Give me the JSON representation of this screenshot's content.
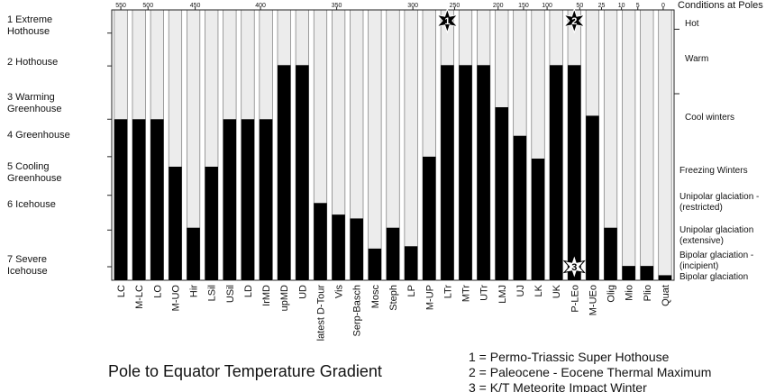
{
  "chart_data": {
    "type": "bar",
    "title": "Pole to Equator Temperature Gradient",
    "top_axis_ticks": [
      "550",
      "500",
      "450",
      "400",
      "350",
      "300",
      "250",
      "200",
      "150",
      "100",
      "50",
      "25",
      "10",
      "5",
      "0"
    ],
    "top_axis_tick_at_bar": [
      0,
      1.5,
      4.1,
      7.7,
      11.9,
      16.1,
      18.4,
      20.8,
      22.2,
      23.5,
      25.3,
      26.5,
      27.6,
      28.5,
      29.9
    ],
    "climate_states": [
      "1 Extreme\nHothouse",
      "2 Hothouse",
      "3 Warming\nGreenhouse",
      "4 Greenhouse",
      "5 Cooling\nGreenhouse",
      "6 Icehouse",
      "7  Severe\nIcehouse"
    ],
    "pole_header": "Conditions at Poles",
    "pole_conditions": [
      "Hot",
      "Warm",
      "Cool winters",
      "Freezing Winters",
      "Unipolar glaciation -\n(restricted)",
      "Unipolar glaciation\n(extensive)",
      "Bipolar glaciation -\n(incipient)",
      "Bipolar glaciation"
    ],
    "y_scale_top": 7.0,
    "categories": [
      "LC",
      "M-LC",
      "LO",
      "M-UO",
      "Hir",
      "LSil",
      "USil",
      "LD",
      "IrMD",
      "upMD",
      "UD",
      "latest D-Tour",
      "Vis",
      "Serp-Basch",
      "Mosc",
      "Steph",
      "LP",
      "M-UP",
      "LTr",
      "MTr",
      "UTr",
      "LMJ",
      "UJ",
      "LK",
      "UK",
      "P-LEo",
      "M-UEo",
      "Olig",
      "Mio",
      "Plio",
      "Quat"
    ],
    "values": [
      4.17,
      4.17,
      4.17,
      2.94,
      1.36,
      2.94,
      4.17,
      4.17,
      4.17,
      5.57,
      5.57,
      2.0,
      1.7,
      1.6,
      0.82,
      1.36,
      0.88,
      3.2,
      5.57,
      5.57,
      5.57,
      4.48,
      3.74,
      3.15,
      5.57,
      5.57,
      4.26,
      1.36,
      0.37,
      0.37,
      0.13
    ],
    "markers": [
      {
        "label": "1",
        "bar_index": 18,
        "shape": "star-black"
      },
      {
        "label": "2",
        "bar_index": 25,
        "shape": "star-black"
      },
      {
        "label": "3",
        "bar_index": 25,
        "shape": "star-white",
        "level": 0.35
      }
    ],
    "notes": [
      "1 = Permo-Triassic Super Hothouse",
      "2 = Paleocene - Eocene Thermal Maximum",
      "3 = K/T Meteorite Impact Winter"
    ]
  }
}
